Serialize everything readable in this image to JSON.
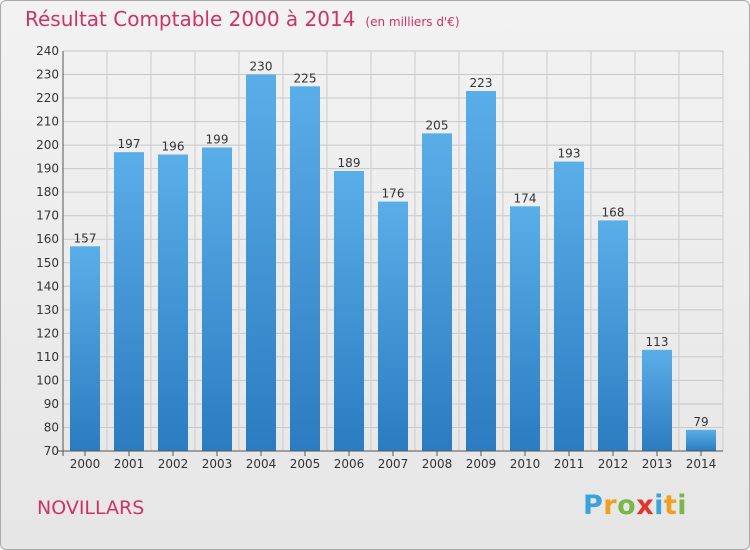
{
  "header": {
    "title": "Résultat Comptable 2000 à 2014",
    "unit": "(en milliers d'€)"
  },
  "commune": "NOVILLARS",
  "logo": {
    "letters": [
      "P",
      "r",
      "o",
      "x",
      "i",
      "t",
      "i"
    ],
    "colors": [
      "#3aa3dc",
      "#f0a020",
      "#7ab648",
      "#e5332a",
      "#3aa3dc",
      "#f0a020",
      "#7ab648"
    ]
  },
  "colors": {
    "bar_top": "#5aaee8",
    "bar_bottom": "#2b7cc0",
    "accent": "#cc3366"
  },
  "chart_data": {
    "type": "bar",
    "categories": [
      "2000",
      "2001",
      "2002",
      "2003",
      "2004",
      "2005",
      "2006",
      "2007",
      "2008",
      "2009",
      "2010",
      "2011",
      "2012",
      "2013",
      "2014"
    ],
    "values": [
      157,
      197,
      196,
      199,
      230,
      225,
      189,
      176,
      205,
      223,
      174,
      193,
      168,
      113,
      79
    ],
    "title": "Résultat Comptable 2000 à 2014",
    "subtitle": "(en milliers d'€)",
    "xlabel": "",
    "ylabel": "",
    "ylim": [
      70,
      240
    ],
    "ytick_step": 10,
    "grid": true,
    "legend": "none"
  }
}
